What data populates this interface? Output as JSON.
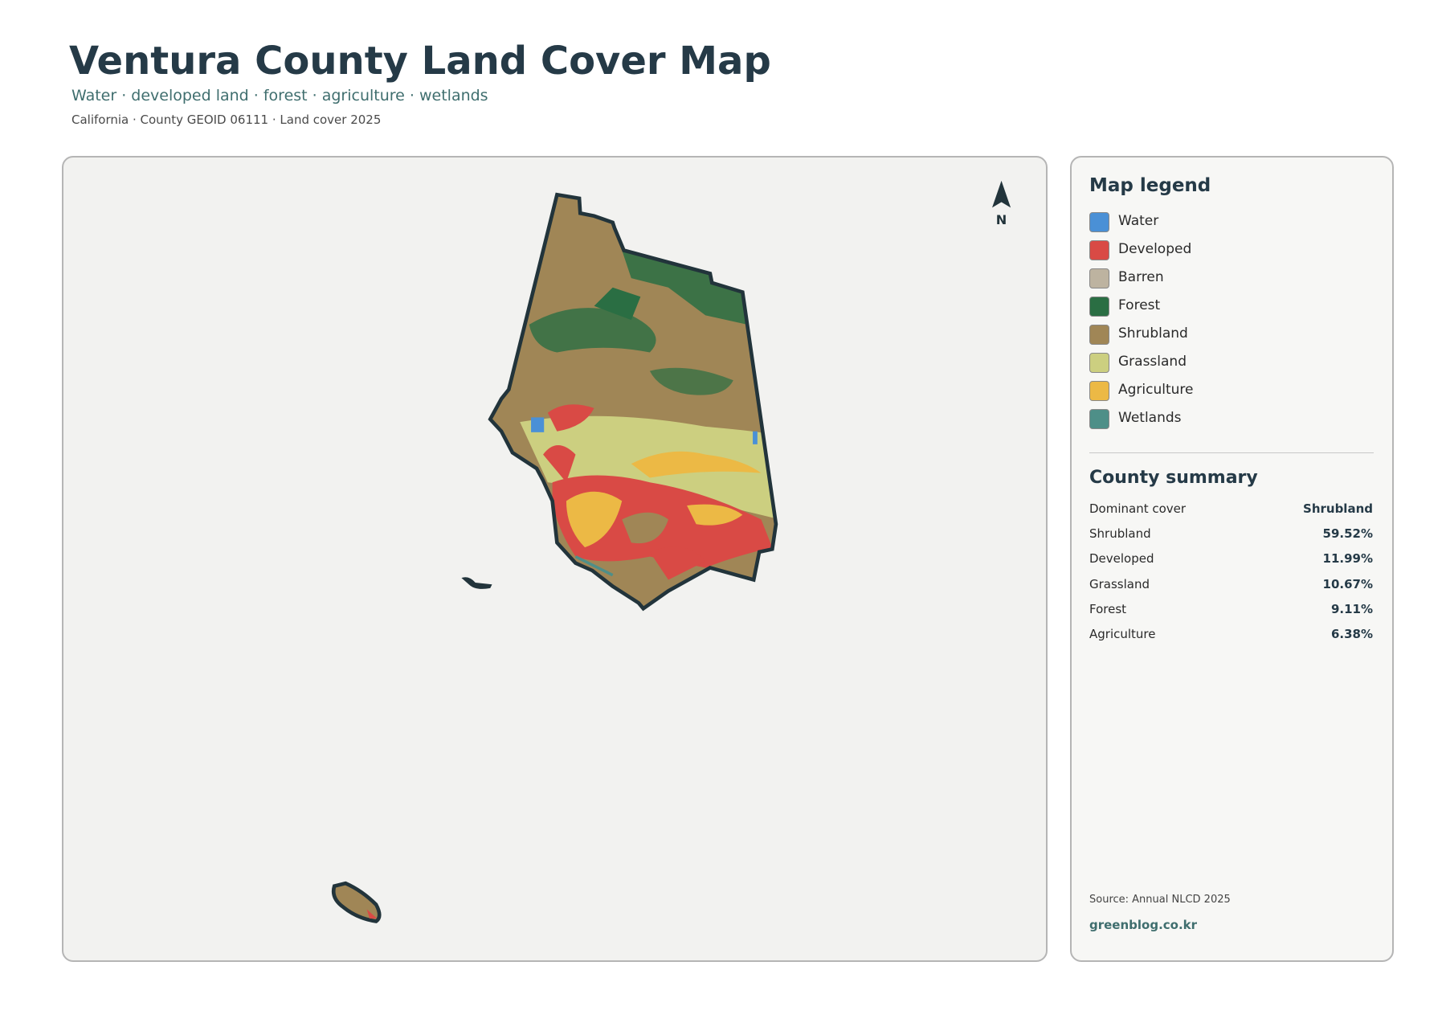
{
  "header": {
    "title": "Ventura County Land Cover Map",
    "subtitle": "Water · developed land · forest · agriculture · wetlands",
    "meta": "California · County GEOID 06111 · Land cover 2025"
  },
  "map": {
    "north_label": "N"
  },
  "legend": {
    "title": "Map legend",
    "items": [
      {
        "label": "Water",
        "color": "#4a90d6"
      },
      {
        "label": "Developed",
        "color": "#d94a45"
      },
      {
        "label": "Barren",
        "color": "#bdb3a0"
      },
      {
        "label": "Forest",
        "color": "#2a6e43"
      },
      {
        "label": "Shrubland",
        "color": "#a08656"
      },
      {
        "label": "Grassland",
        "color": "#cccf80"
      },
      {
        "label": "Agriculture",
        "color": "#ecb945"
      },
      {
        "label": "Wetlands",
        "color": "#4e8f88"
      }
    ]
  },
  "summary": {
    "title": "County summary",
    "rows": [
      [
        "Dominant cover",
        "Shrubland"
      ],
      [
        "Shrubland",
        "59.52%"
      ],
      [
        "Developed",
        "11.99%"
      ],
      [
        "Grassland",
        "10.67%"
      ],
      [
        "Forest",
        "9.11%"
      ],
      [
        "Agriculture",
        "6.38%"
      ]
    ]
  },
  "footer": {
    "source": "Source: Annual NLCD 2025",
    "site": "greenblog.co.kr"
  }
}
